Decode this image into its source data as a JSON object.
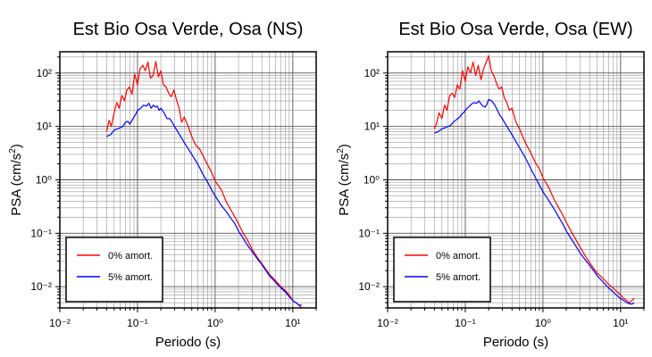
{
  "chart_data": [
    {
      "type": "line",
      "title": "Est Bio Osa Verde, Osa (NS)",
      "xlabel": "Periodo (s)",
      "ylabel": "PSA (cm/s²)",
      "x_scale": "log",
      "y_scale": "log",
      "xlim": [
        0.01,
        20
      ],
      "ylim": [
        0.004,
        250
      ],
      "x_ticks": [
        0.01,
        0.1,
        1,
        10
      ],
      "x_tick_labels": [
        "10⁻²",
        "10⁻¹",
        "10⁰",
        "10¹"
      ],
      "y_ticks": [
        0.01,
        0.1,
        1,
        10,
        100
      ],
      "y_tick_labels": [
        "10⁻²",
        "10⁻¹",
        "10⁰",
        "10¹",
        "10²"
      ],
      "grid": true,
      "legend": "bottom-left",
      "series": [
        {
          "name": "0% amort.",
          "color": "#ff0000",
          "x": [
            0.04,
            0.043,
            0.046,
            0.05,
            0.054,
            0.058,
            0.063,
            0.068,
            0.073,
            0.079,
            0.085,
            0.092,
            0.1,
            0.108,
            0.117,
            0.126,
            0.136,
            0.147,
            0.159,
            0.172,
            0.186,
            0.2,
            0.216,
            0.233,
            0.252,
            0.272,
            0.294,
            0.317,
            0.343,
            0.37,
            0.4,
            0.45,
            0.5,
            0.56,
            0.63,
            0.7,
            0.8,
            0.9,
            1.0,
            1.2,
            1.4,
            1.6,
            1.8,
            2.0,
            2.3,
            2.6,
            3.0,
            3.5,
            4.0,
            4.5,
            5.0,
            6.0,
            7.0,
            8.0,
            9.0,
            10.0,
            11.0,
            12.0,
            13.0
          ],
          "y": [
            8,
            13,
            10,
            18,
            28,
            22,
            38,
            30,
            48,
            55,
            40,
            95,
            60,
            120,
            140,
            110,
            160,
            80,
            90,
            165,
            85,
            110,
            60,
            55,
            42,
            36,
            48,
            32,
            22,
            12,
            15,
            10,
            6.5,
            4.5,
            3.8,
            2.8,
            1.9,
            1.4,
            0.95,
            0.65,
            0.38,
            0.27,
            0.2,
            0.15,
            0.1,
            0.075,
            0.05,
            0.035,
            0.027,
            0.021,
            0.017,
            0.013,
            0.01,
            0.0085,
            0.007,
            0.0055,
            0.005,
            0.0045,
            0.004
          ]
        },
        {
          "name": "5% amort.",
          "color": "#0000ff",
          "x": [
            0.04,
            0.045,
            0.05,
            0.055,
            0.06,
            0.065,
            0.07,
            0.075,
            0.08,
            0.085,
            0.09,
            0.095,
            0.1,
            0.11,
            0.12,
            0.13,
            0.14,
            0.15,
            0.16,
            0.17,
            0.18,
            0.19,
            0.2,
            0.22,
            0.24,
            0.26,
            0.28,
            0.3,
            0.33,
            0.36,
            0.4,
            0.45,
            0.5,
            0.56,
            0.63,
            0.7,
            0.8,
            0.9,
            1.0,
            1.2,
            1.4,
            1.6,
            1.8,
            2.0,
            2.3,
            2.6,
            3.0,
            3.5,
            4.0,
            4.5,
            5.0,
            6.0,
            7.0,
            8.0,
            9.0,
            10.0,
            11.0,
            12.0,
            13.0
          ],
          "y": [
            6.5,
            7,
            8.5,
            9,
            9.5,
            10,
            12,
            12.5,
            11,
            13,
            15,
            17,
            20,
            22,
            25,
            24,
            27,
            22,
            25,
            23,
            24,
            20,
            22,
            18,
            14,
            14,
            12,
            10,
            8,
            6.5,
            5,
            3.8,
            3,
            2.3,
            1.7,
            1.25,
            0.9,
            0.65,
            0.5,
            0.33,
            0.25,
            0.19,
            0.15,
            0.11,
            0.08,
            0.06,
            0.045,
            0.033,
            0.026,
            0.02,
            0.016,
            0.012,
            0.0095,
            0.008,
            0.0065,
            0.0055,
            0.005,
            0.0045,
            0.0045
          ]
        }
      ]
    },
    {
      "type": "line",
      "title": "Est Bio Osa Verde, Osa (EW)",
      "xlabel": "Periodo (s)",
      "ylabel": "PSA (cm/s²)",
      "x_scale": "log",
      "y_scale": "log",
      "xlim": [
        0.01,
        20
      ],
      "ylim": [
        0.004,
        250
      ],
      "x_ticks": [
        0.01,
        0.1,
        1,
        10
      ],
      "x_tick_labels": [
        "10⁻²",
        "10⁻¹",
        "10⁰",
        "10¹"
      ],
      "y_ticks": [
        0.01,
        0.1,
        1,
        10,
        100
      ],
      "y_tick_labels": [
        "10⁻²",
        "10⁻¹",
        "10⁰",
        "10¹",
        "10²"
      ],
      "grid": true,
      "legend": "bottom-left",
      "series": [
        {
          "name": "0% amort.",
          "color": "#ff0000",
          "x": [
            0.04,
            0.043,
            0.046,
            0.05,
            0.054,
            0.058,
            0.063,
            0.068,
            0.073,
            0.079,
            0.085,
            0.092,
            0.1,
            0.108,
            0.117,
            0.126,
            0.136,
            0.147,
            0.159,
            0.172,
            0.186,
            0.2,
            0.216,
            0.233,
            0.252,
            0.272,
            0.294,
            0.317,
            0.343,
            0.37,
            0.4,
            0.45,
            0.5,
            0.56,
            0.63,
            0.7,
            0.8,
            0.9,
            1.0,
            1.2,
            1.4,
            1.6,
            1.8,
            2.0,
            2.3,
            2.6,
            3.0,
            3.5,
            4.0,
            4.5,
            5.0,
            6.0,
            7.0,
            8.0,
            9.0,
            10.0,
            11.0,
            12.0,
            13.0,
            14.0,
            15.0
          ],
          "y": [
            9,
            12,
            18,
            14,
            25,
            20,
            38,
            42,
            35,
            60,
            50,
            110,
            70,
            130,
            100,
            160,
            90,
            140,
            75,
            120,
            160,
            210,
            110,
            90,
            65,
            50,
            55,
            35,
            28,
            20,
            22,
            12,
            9,
            6,
            4.2,
            3.2,
            2.1,
            1.6,
            1.1,
            0.7,
            0.42,
            0.3,
            0.22,
            0.16,
            0.11,
            0.08,
            0.055,
            0.038,
            0.028,
            0.022,
            0.018,
            0.014,
            0.011,
            0.0095,
            0.008,
            0.007,
            0.006,
            0.0055,
            0.005,
            0.0055,
            0.006
          ]
        },
        {
          "name": "5% amort.",
          "color": "#0000ff",
          "x": [
            0.04,
            0.045,
            0.05,
            0.055,
            0.06,
            0.065,
            0.07,
            0.075,
            0.08,
            0.085,
            0.09,
            0.095,
            0.1,
            0.11,
            0.12,
            0.13,
            0.14,
            0.15,
            0.16,
            0.17,
            0.18,
            0.19,
            0.2,
            0.22,
            0.24,
            0.26,
            0.28,
            0.3,
            0.33,
            0.36,
            0.4,
            0.45,
            0.5,
            0.56,
            0.63,
            0.7,
            0.8,
            0.9,
            1.0,
            1.2,
            1.4,
            1.6,
            1.8,
            2.0,
            2.3,
            2.6,
            3.0,
            3.5,
            4.0,
            4.5,
            5.0,
            6.0,
            7.0,
            8.0,
            9.0,
            10.0,
            11.0,
            12.0,
            13.0,
            14.0,
            15.0
          ],
          "y": [
            7.5,
            8,
            9,
            9.5,
            10,
            10.5,
            12,
            13,
            14,
            15,
            17,
            18,
            20,
            23,
            26,
            28,
            27,
            30,
            26,
            24,
            23,
            26,
            32,
            30,
            25,
            20,
            16,
            14,
            11,
            9,
            7,
            5.2,
            4,
            3,
            2.2,
            1.6,
            1.1,
            0.8,
            0.6,
            0.4,
            0.28,
            0.2,
            0.15,
            0.11,
            0.08,
            0.06,
            0.043,
            0.032,
            0.025,
            0.02,
            0.016,
            0.012,
            0.0095,
            0.008,
            0.0068,
            0.006,
            0.0055,
            0.005,
            0.0048,
            0.0047,
            0.005
          ]
        }
      ]
    }
  ]
}
